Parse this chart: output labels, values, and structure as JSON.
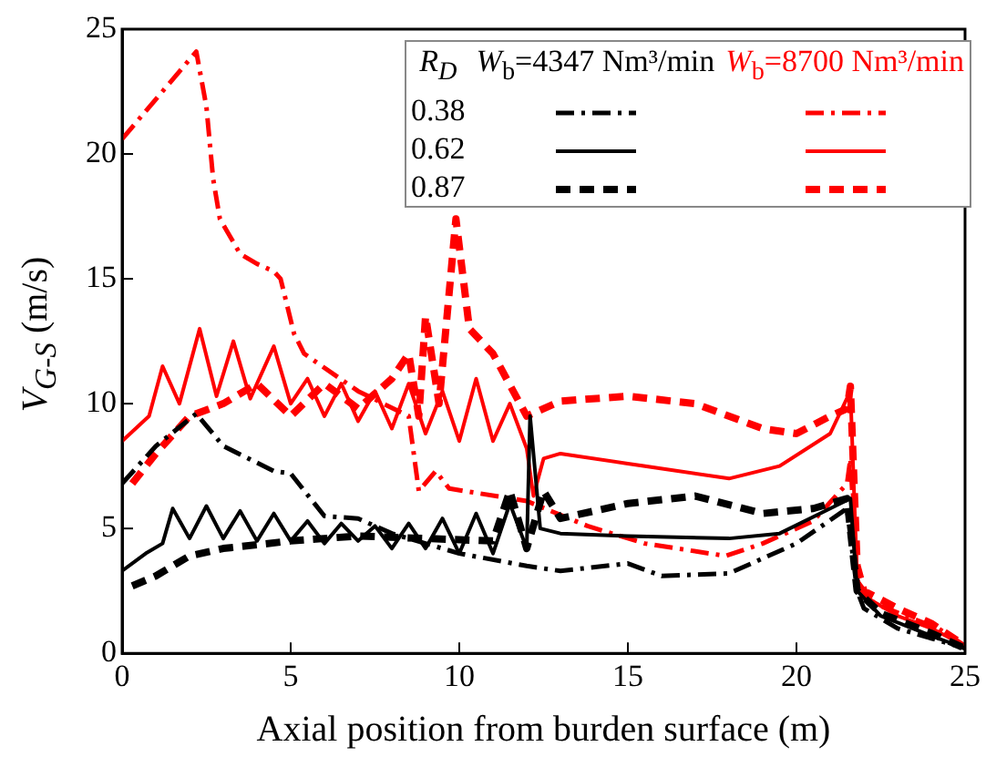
{
  "chart_data": {
    "type": "line",
    "xlabel": "Axial position from burden surface (m)",
    "ylabel": "V$_{G-S}$ (m/s)",
    "legend_title": "R$_{D}$",
    "annotations": [
      "W$_{b}$=4347 Nm³/min",
      "W$_{b}$=8700 Nm³/min",
      "0.38",
      "0.62",
      "0.87"
    ],
    "xlim": [
      0,
      25
    ],
    "xticks": [
      0,
      5,
      10,
      15,
      20,
      25
    ],
    "ylim": [
      0,
      25
    ],
    "yticks": [
      0,
      5,
      10,
      15,
      20,
      25
    ],
    "grid": false,
    "marker": "none",
    "series": [
      {
        "color": "#000000",
        "line_style": "dashdot",
        "x": [
          0,
          1,
          2.2,
          3,
          4.5,
          5,
          6,
          7,
          8,
          10,
          12,
          13,
          15,
          16,
          18,
          20,
          21.5,
          21.8,
          22,
          23,
          24,
          25
        ],
        "values": [
          6.8,
          8.3,
          9.6,
          8.3,
          7.3,
          7.2,
          5.5,
          5.4,
          4.8,
          4,
          3.5,
          3.3,
          3.6,
          3.1,
          3.2,
          4.4,
          5.8,
          2.5,
          1.8,
          1,
          0.6,
          0.2
        ]
      },
      {
        "color": "#000000",
        "line_style": "solid",
        "x": [
          0,
          0.7,
          1.2,
          1.5,
          2,
          2.5,
          3,
          3.5,
          4,
          4.5,
          5,
          5.5,
          6,
          6.5,
          7,
          7.5,
          8,
          8.5,
          9,
          9.5,
          10,
          10.5,
          11,
          11.5,
          12,
          12.1,
          12.4,
          13,
          15,
          18,
          19.5,
          21,
          21.6,
          21.8,
          22.5,
          24,
          25
        ],
        "values": [
          3.3,
          4,
          4.4,
          5.8,
          4.6,
          5.9,
          4.6,
          5.7,
          4.5,
          5.6,
          4.5,
          5.3,
          4.4,
          5.2,
          4.5,
          5.1,
          4.2,
          5.2,
          4.2,
          5.4,
          4,
          5.6,
          4,
          6,
          4.2,
          9.5,
          5,
          4.8,
          4.7,
          4.6,
          4.8,
          5.8,
          6.2,
          2.5,
          1.5,
          0.7,
          0.2
        ]
      },
      {
        "color": "#000000",
        "line_style": "dashed",
        "x": [
          0.3,
          1,
          2,
          3,
          5,
          7,
          9,
          11,
          11.5,
          12,
          12.5,
          13,
          15,
          17,
          19,
          20.5,
          21.5,
          21.8,
          22.5,
          24,
          25
        ],
        "values": [
          2.7,
          3.1,
          3.9,
          4.2,
          4.5,
          4.7,
          4.6,
          4.5,
          6.5,
          4.2,
          6.5,
          5.4,
          6,
          6.3,
          5.6,
          5.8,
          6.2,
          2.5,
          1.6,
          0.8,
          0.2
        ]
      },
      {
        "color": "#ff0000",
        "line_style": "dashdot",
        "x": [
          0,
          2.2,
          2.5,
          2.7,
          2.9,
          3.5,
          4,
          4.5,
          4.7,
          5.1,
          5.4,
          7,
          8.5,
          8.8,
          9.3,
          9.7,
          12,
          13.8,
          15.5,
          17.9,
          19,
          20.5,
          21.5,
          21.6,
          21.8,
          22.3,
          24.2,
          25
        ],
        "values": [
          20.6,
          24.1,
          21.9,
          19,
          17.4,
          16,
          15.6,
          15.3,
          15,
          12.8,
          12,
          10.5,
          9.5,
          6.5,
          7.3,
          6.6,
          6.1,
          5.1,
          4.4,
          3.9,
          4.4,
          5.3,
          6.8,
          7.8,
          2.9,
          2,
          1,
          0.3
        ]
      },
      {
        "color": "#ff0000",
        "line_style": "solid",
        "x": [
          0,
          0.8,
          1.2,
          1.7,
          2.3,
          2.8,
          3.3,
          3.8,
          4.5,
          5,
          5.5,
          6,
          6.5,
          7,
          7.5,
          8,
          8.5,
          9,
          9.5,
          10,
          10.5,
          11,
          11.5,
          12,
          12.2,
          12.5,
          13,
          15,
          18,
          19.5,
          21,
          21.6,
          21.8,
          22,
          23,
          24,
          25
        ],
        "values": [
          8.5,
          9.5,
          11.5,
          10,
          13,
          10.3,
          12.5,
          10.2,
          12.3,
          10,
          11,
          9.5,
          10.8,
          9.3,
          10.5,
          9,
          10.8,
          8.8,
          10.5,
          8.5,
          11,
          8.5,
          10,
          8.2,
          6.3,
          7.8,
          8,
          7.6,
          7,
          7.5,
          8.8,
          10.5,
          3,
          2.3,
          1.5,
          1,
          0.3
        ]
      },
      {
        "color": "#ff0000",
        "line_style": "dashed",
        "x": [
          0.3,
          1,
          2,
          3,
          4,
          5,
          6,
          7,
          8,
          8.5,
          8.8,
          9,
          9.4,
          9.9,
          10.3,
          11,
          12,
          12.5,
          13,
          15,
          17,
          19,
          20,
          21,
          21.5,
          21.6,
          21.8,
          22,
          23,
          24,
          25
        ],
        "values": [
          6.8,
          8,
          9.5,
          10,
          10.8,
          9.5,
          10.8,
          9.8,
          11,
          12,
          9.5,
          13.5,
          10,
          17.4,
          13,
          12,
          9.5,
          9.8,
          10.1,
          10.3,
          10,
          9,
          8.8,
          9.5,
          9.8,
          10.7,
          3.5,
          2.5,
          1.8,
          1.2,
          0.3
        ]
      }
    ]
  }
}
